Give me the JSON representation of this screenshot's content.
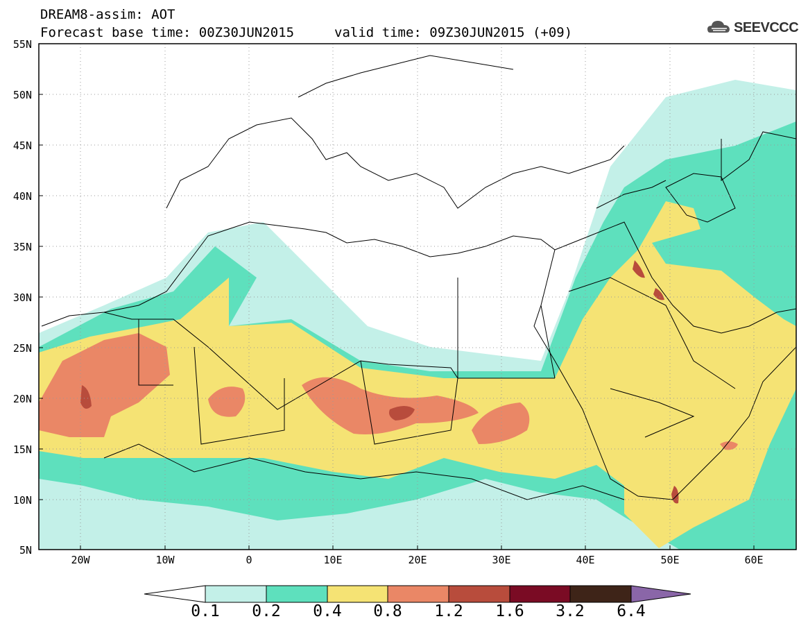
{
  "header": {
    "line1": "DREAM8-assim: AOT",
    "line2": "Forecast base time: 00Z30JUN2015",
    "valid": "valid time: 09Z30JUN2015 (+09)"
  },
  "logo": {
    "text": "SEEVCCC",
    "icon": "cloud-icon"
  },
  "map": {
    "region": {
      "lon_range": [
        -25,
        65
      ],
      "lat_range": [
        5,
        55
      ]
    },
    "lat_ticks": [
      "55N",
      "50N",
      "45N",
      "40N",
      "35N",
      "30N",
      "25N",
      "20N",
      "15N",
      "10N",
      "5N"
    ],
    "lon_ticks": [
      "20W",
      "10W",
      "0",
      "10E",
      "20E",
      "30E",
      "40E",
      "50E",
      "60E"
    ],
    "gridlines": "dotted"
  },
  "colorbar": {
    "labels": [
      "0.1",
      "0.2",
      "0.4",
      "0.8",
      "1.2",
      "1.6",
      "3.2",
      "6.4"
    ],
    "colors": [
      "#ffffff",
      "#c3f0e8",
      "#5ee0bd",
      "#f5e374",
      "#ea8766",
      "#b84c3c",
      "#7a0b24",
      "#3e2418",
      "#8a66a8"
    ]
  }
}
